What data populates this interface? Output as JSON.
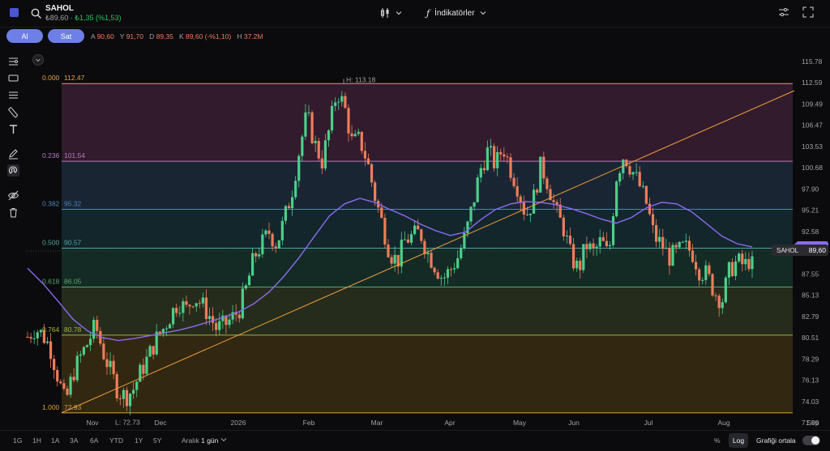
{
  "header": {
    "symbol": "SAHOL",
    "price": "₺89,60",
    "change": "₺1,35 (%1,53)",
    "indicators_label": "İndikatörler"
  },
  "order": {
    "buy_label": "Al",
    "sell_label": "Sat",
    "ohlc": [
      {
        "k": "A",
        "v": "90,60"
      },
      {
        "k": "Y",
        "v": "91,70"
      },
      {
        "k": "D",
        "v": "89,35"
      },
      {
        "k": "K",
        "v": "89,60 (-%1,10)"
      },
      {
        "k": "H",
        "v": "37.2M"
      }
    ]
  },
  "footer": {
    "timeframes": [
      "1G",
      "1H",
      "1A",
      "3A",
      "6A",
      "YTD",
      "1Y",
      "5Y"
    ],
    "range_label": "Aralık",
    "range_value": "1 gün",
    "percent_label": "%",
    "log_label": "Log",
    "center_label": "Grafiği ortala"
  },
  "chart_data": {
    "type": "candlestick",
    "scale": "log",
    "y_ticks": [
      "115.78",
      "112.59",
      "109.49",
      "106.47",
      "103.53",
      "100.68",
      "97.90",
      "95.21",
      "92.58",
      "90.03",
      "87.55",
      "85.13",
      "82.79",
      "80.51",
      "78.29",
      "76.13",
      "74.03",
      "71.99"
    ],
    "y_tick_values": [
      115.78,
      112.59,
      109.49,
      106.47,
      103.53,
      100.68,
      97.9,
      95.21,
      92.58,
      90.03,
      87.55,
      85.13,
      82.79,
      80.51,
      78.29,
      76.13,
      74.03,
      71.99
    ],
    "x_labels": [
      "Nov",
      "Dec",
      "2026",
      "Feb",
      "Mar",
      "Apr",
      "May",
      "Jun",
      "Jul",
      "Aug",
      "Sep"
    ],
    "fibonacci": {
      "levels": [
        {
          "ratio": "0.000",
          "price": "112.47",
          "value": 112.47,
          "color": "#e5a04a"
        },
        {
          "ratio": "0.236",
          "price": "101.54",
          "value": 101.54,
          "color": "#b57bc2"
        },
        {
          "ratio": "0.382",
          "price": "95.32",
          "value": 95.32,
          "color": "#4f86b8"
        },
        {
          "ratio": "0.500",
          "price": "90.57",
          "value": 90.57,
          "color": "#4da5a3"
        },
        {
          "ratio": "0.618",
          "price": "86.05",
          "value": 86.05,
          "color": "#59a86a"
        },
        {
          "ratio": "0.764",
          "price": "80.78",
          "value": 80.78,
          "color": "#a5b244"
        },
        {
          "ratio": "1.000",
          "price": "72.93",
          "value": 72.93,
          "color": "#d9a33a"
        }
      ]
    },
    "high_label": "H:  113.18",
    "high_value": 113.18,
    "low_label": "L:  72.73",
    "low_value": 72.73,
    "ma_last_label": "90.72",
    "ma_last_value": 90.72,
    "last_price_symbol": "SAHOL",
    "last_price_label": "89,60",
    "last_price_value": 89.6,
    "close_path": [
      [
        0,
        80.6
      ],
      [
        0.5,
        81.5
      ],
      [
        1,
        80.8
      ],
      [
        1.5,
        79.5
      ],
      [
        2,
        76.5
      ],
      [
        2.5,
        73.8
      ],
      [
        3,
        76.8
      ],
      [
        3.5,
        78.5
      ],
      [
        4,
        80.0
      ],
      [
        4.5,
        81.8
      ],
      [
        5,
        79.0
      ],
      [
        5.5,
        77.0
      ],
      [
        6,
        75.0
      ],
      [
        6.5,
        74.5
      ],
      [
        7,
        75.2
      ],
      [
        7.5,
        77.0
      ],
      [
        8,
        78.5
      ],
      [
        8.5,
        80.3
      ],
      [
        9,
        81.5
      ],
      [
        9.5,
        83.0
      ],
      [
        10,
        84.5
      ],
      [
        10.5,
        83.5
      ],
      [
        11,
        85.0
      ],
      [
        11.5,
        84.2
      ],
      [
        12,
        83.0
      ],
      [
        12.5,
        81.5
      ],
      [
        13,
        81.8
      ],
      [
        13.5,
        82.5
      ],
      [
        14,
        83.5
      ],
      [
        14.5,
        86.0
      ],
      [
        15,
        89.5
      ],
      [
        15.5,
        91.0
      ],
      [
        16,
        92.5
      ],
      [
        16.5,
        91.0
      ],
      [
        17,
        94.0
      ],
      [
        17.5,
        97.5
      ],
      [
        18,
        103.0
      ],
      [
        18.5,
        108.0
      ],
      [
        19,
        104.0
      ],
      [
        19.5,
        101.5
      ],
      [
        20,
        106.0
      ],
      [
        20.5,
        111.5
      ],
      [
        21,
        109.0
      ],
      [
        21.5,
        104.0
      ],
      [
        22,
        104.5
      ],
      [
        22.5,
        101.5
      ],
      [
        23,
        97.0
      ],
      [
        23.5,
        93.5
      ],
      [
        24,
        90.0
      ],
      [
        24.5,
        89.0
      ],
      [
        25,
        91.5
      ],
      [
        25.5,
        92.0
      ],
      [
        26,
        92.5
      ],
      [
        26.5,
        90.0
      ],
      [
        27,
        88.5
      ],
      [
        27.5,
        87.0
      ],
      [
        28,
        88.0
      ],
      [
        28.5,
        89.5
      ],
      [
        29,
        92.0
      ],
      [
        29.5,
        96.0
      ],
      [
        30,
        100.5
      ],
      [
        30.5,
        103.0
      ],
      [
        31,
        101.0
      ],
      [
        31.5,
        103.5
      ],
      [
        32,
        100.5
      ],
      [
        32.5,
        98.0
      ],
      [
        33,
        94.5
      ],
      [
        33.5,
        96.5
      ],
      [
        34,
        101.0
      ],
      [
        34.5,
        98.5
      ],
      [
        35,
        95.0
      ],
      [
        35.5,
        93.0
      ],
      [
        36,
        89.5
      ],
      [
        36.5,
        88.0
      ],
      [
        37,
        91.0
      ],
      [
        37.5,
        90.0
      ],
      [
        38,
        91.5
      ],
      [
        38.5,
        89.5
      ],
      [
        39,
        99.5
      ],
      [
        39.5,
        102.5
      ],
      [
        40,
        100.5
      ],
      [
        40.5,
        98.5
      ],
      [
        41,
        96.0
      ],
      [
        41.5,
        92.0
      ],
      [
        42,
        91.0
      ],
      [
        42.5,
        89.5
      ],
      [
        43,
        90.0
      ],
      [
        43.5,
        90.7
      ],
      [
        44,
        90.2
      ],
      [
        44.5,
        88.0
      ],
      [
        45,
        87.5
      ],
      [
        45.5,
        85.5
      ],
      [
        46,
        84.5
      ],
      [
        46.5,
        88.0
      ],
      [
        47,
        89.0
      ],
      [
        47.5,
        88.5
      ],
      [
        48,
        89.6
      ]
    ],
    "ma_path": [
      [
        0,
        88.2
      ],
      [
        1,
        86.5
      ],
      [
        2,
        84.5
      ],
      [
        3,
        82.5
      ],
      [
        4,
        81.2
      ],
      [
        5,
        80.5
      ],
      [
        6,
        80.2
      ],
      [
        7,
        80.4
      ],
      [
        8,
        80.7
      ],
      [
        9,
        81.0
      ],
      [
        10,
        81.3
      ],
      [
        11,
        81.7
      ],
      [
        12,
        82.2
      ],
      [
        13,
        82.7
      ],
      [
        14,
        83.3
      ],
      [
        15,
        84.2
      ],
      [
        16,
        85.5
      ],
      [
        17,
        87.3
      ],
      [
        18,
        89.5
      ],
      [
        19,
        92.0
      ],
      [
        20,
        94.5
      ],
      [
        21,
        96.0
      ],
      [
        22,
        96.7
      ],
      [
        23,
        96.2
      ],
      [
        24,
        95.3
      ],
      [
        25,
        94.5
      ],
      [
        26,
        93.5
      ],
      [
        27,
        92.7
      ],
      [
        28,
        92.1
      ],
      [
        29,
        92.5
      ],
      [
        30,
        94.0
      ],
      [
        31,
        95.3
      ],
      [
        32,
        96.0
      ],
      [
        33,
        96.3
      ],
      [
        34,
        96.2
      ],
      [
        35,
        95.9
      ],
      [
        36,
        95.4
      ],
      [
        37,
        94.8
      ],
      [
        38,
        94.1
      ],
      [
        39,
        93.6
      ],
      [
        40,
        94.3
      ],
      [
        41,
        95.5
      ],
      [
        42,
        96.2
      ],
      [
        43,
        96.0
      ],
      [
        44,
        95.0
      ],
      [
        45,
        93.5
      ],
      [
        46,
        92.0
      ],
      [
        47,
        91.1
      ],
      [
        48,
        90.72
      ]
    ]
  }
}
